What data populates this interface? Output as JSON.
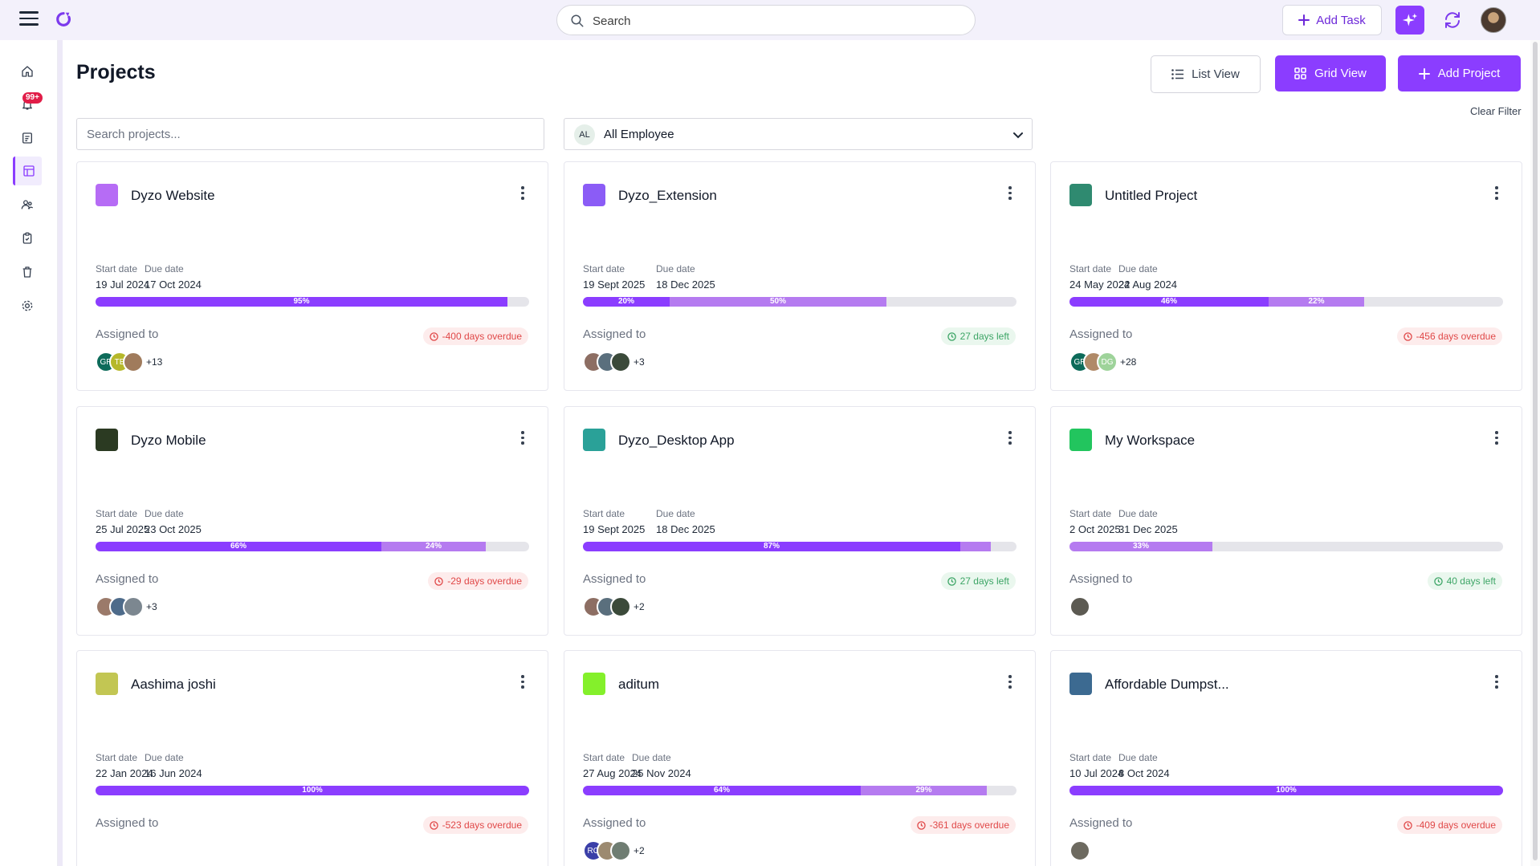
{
  "topbar": {
    "search_placeholder": "Search",
    "add_task_label": "Add Task"
  },
  "sidebar": {
    "notification_badge": "99+",
    "items": [
      "home",
      "notifications",
      "tasks",
      "projects",
      "team",
      "clipboard",
      "trash",
      "settings"
    ]
  },
  "header": {
    "title": "Projects",
    "list_view_label": "List View",
    "grid_view_label": "Grid View",
    "add_project_label": "Add Project",
    "clear_filter_label": "Clear Filter"
  },
  "filters": {
    "search_placeholder": "Search projects...",
    "employee_initials": "AL",
    "employee_selected": "All Employee"
  },
  "labels": {
    "start_date": "Start date",
    "due_date": "Due date",
    "assigned_to": "Assigned to"
  },
  "colors": {
    "accent": "#8b3dff",
    "accent_light": "#b57bf0",
    "overdue": "#e04848",
    "days_left": "#3da566"
  },
  "projects": [
    {
      "name": "Dyzo Website",
      "color": "#b66cf5",
      "start": "19 Jul 2024",
      "due": "17 Oct 2024",
      "progress1": 95,
      "progress1_label": "95%",
      "progress2": 0,
      "progress2_label": "",
      "status": "-400 days overdue",
      "status_type": "over",
      "avatars": [
        {
          "t": "GR",
          "c": "#0d6b5a"
        },
        {
          "t": "TE",
          "c": "#b6b82a"
        },
        {
          "t": "",
          "c": "#a07b5c"
        }
      ],
      "more": "+13"
    },
    {
      "name": "Dyzo_Extension",
      "color": "#8b5cf6",
      "start": "19 Sept 2025",
      "due": "18 Dec 2025",
      "progress1": 20,
      "progress1_label": "20%",
      "progress2": 50,
      "progress2_label": "50%",
      "status": "27 days left",
      "status_type": "left",
      "avatars": [
        {
          "t": "",
          "c": "#8d6e63"
        },
        {
          "t": "",
          "c": "#5a6f7d"
        },
        {
          "t": "",
          "c": "#3b4a3a"
        }
      ],
      "more": "+3"
    },
    {
      "name": "Untitled Project",
      "color": "#2f8a70",
      "start": "24 May 2024",
      "due": "22 Aug 2024",
      "progress1": 46,
      "progress1_label": "46%",
      "progress2": 22,
      "progress2_label": "22%",
      "status": "-456 days overdue",
      "status_type": "over",
      "avatars": [
        {
          "t": "GR",
          "c": "#0d6b5a"
        },
        {
          "t": "",
          "c": "#b08a68"
        },
        {
          "t": "DG",
          "c": "#9ed39a"
        }
      ],
      "more": "+28"
    },
    {
      "name": "Dyzo Mobile",
      "color": "#2b3a22",
      "start": "25 Jul 2025",
      "due": "23 Oct 2025",
      "progress1": 66,
      "progress1_label": "66%",
      "progress2": 24,
      "progress2_label": "24%",
      "status": "-29 days overdue",
      "status_type": "over",
      "avatars": [
        {
          "t": "",
          "c": "#9b7a6a"
        },
        {
          "t": "",
          "c": "#4e6b8a"
        },
        {
          "t": "",
          "c": "#7c8790"
        }
      ],
      "more": "+3"
    },
    {
      "name": "Dyzo_Desktop App",
      "color": "#2aa198",
      "start": "19 Sept 2025",
      "due": "18 Dec 2025",
      "progress1": 87,
      "progress1_label": "87%",
      "progress2": 7,
      "progress2_label": "",
      "status": "27 days left",
      "status_type": "left",
      "avatars": [
        {
          "t": "",
          "c": "#8d6e63"
        },
        {
          "t": "",
          "c": "#5a6f7d"
        },
        {
          "t": "",
          "c": "#3b4a3a"
        }
      ],
      "more": "+2"
    },
    {
      "name": "My Workspace",
      "color": "#22c55e",
      "start": "2 Oct 2025",
      "due": "31 Dec 2025",
      "progress1": 0,
      "progress1_label": "",
      "progress2": 33,
      "progress2_label": "33%",
      "status": "40 days left",
      "status_type": "left",
      "avatars": [
        {
          "t": "",
          "c": "#5c5a52"
        }
      ],
      "more": ""
    },
    {
      "name": "Aashima joshi",
      "color": "#c2c653",
      "start": "22 Jan 2024",
      "due": "16 Jun 2024",
      "progress1": 100,
      "progress1_label": "100%",
      "progress2": 0,
      "progress2_label": "",
      "status": "-523 days overdue",
      "status_type": "over",
      "avatars": [],
      "more": ""
    },
    {
      "name": "aditum",
      "color": "#84f02b",
      "start": "27 Aug 2024",
      "due": "25 Nov 2024",
      "progress1": 64,
      "progress1_label": "64%",
      "progress2": 29,
      "progress2_label": "29%",
      "status": "-361 days overdue",
      "status_type": "over",
      "avatars": [
        {
          "t": "RO",
          "c": "#3b3fa8"
        },
        {
          "t": "",
          "c": "#9c8a70"
        },
        {
          "t": "",
          "c": "#6f7d72"
        }
      ],
      "more": "+2"
    },
    {
      "name": "Affordable Dumpst...",
      "color": "#3c6a91",
      "start": "10 Jul 2024",
      "due": "8 Oct 2024",
      "progress1": 100,
      "progress1_label": "100%",
      "progress2": 0,
      "progress2_label": "",
      "status": "-409 days overdue",
      "status_type": "over",
      "avatars": [
        {
          "t": "",
          "c": "#6d6a60"
        }
      ],
      "more": ""
    }
  ]
}
